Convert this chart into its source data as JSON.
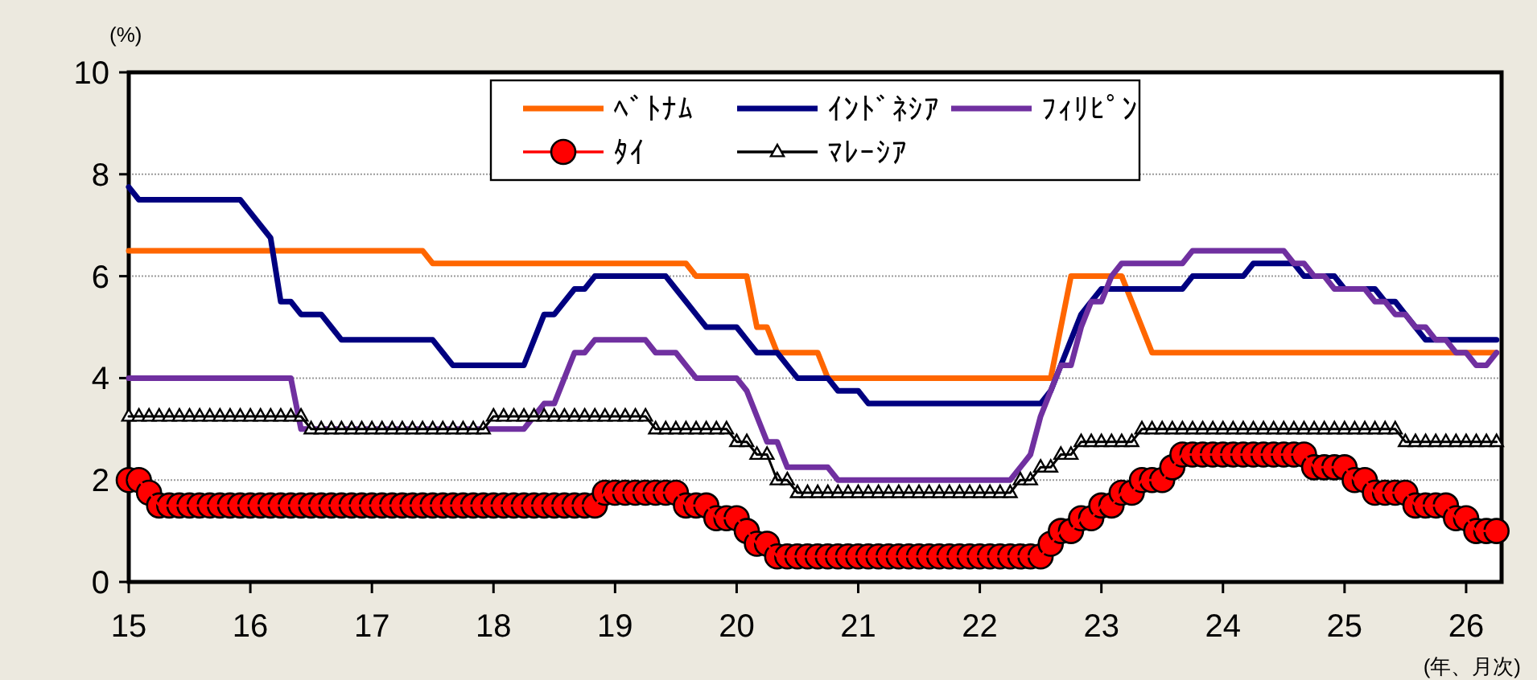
{
  "chart_data": {
    "type": "line",
    "ylabel": "(%)",
    "xlabel": "(年、月次)",
    "legend": "top",
    "grid": "y",
    "xlim": [
      "2015-01",
      "2026-04-16"
    ],
    "ylim": [
      0,
      10
    ],
    "yticks": [
      0,
      2,
      4,
      6,
      8,
      10
    ],
    "xticks": [
      {
        "value": "2015-01",
        "label": "15"
      },
      {
        "value": "2016-01",
        "label": "16"
      },
      {
        "value": "2017-01",
        "label": "17"
      },
      {
        "value": "2018-01",
        "label": "18"
      },
      {
        "value": "2019-01",
        "label": "19"
      },
      {
        "value": "2020-01",
        "label": "20"
      },
      {
        "value": "2021-01",
        "label": "21"
      },
      {
        "value": "2022-01",
        "label": "22"
      },
      {
        "value": "2023-01",
        "label": "23"
      },
      {
        "value": "2024-01",
        "label": "24"
      },
      {
        "value": "2025-01",
        "label": "25"
      },
      {
        "value": "2026-01",
        "label": "26"
      }
    ],
    "x": [
      "2015-01",
      "2015-02",
      "2015-03",
      "2015-04",
      "2015-05",
      "2015-06",
      "2015-07",
      "2015-08",
      "2015-09",
      "2015-10",
      "2015-11",
      "2015-12",
      "2016-01",
      "2016-02",
      "2016-03",
      "2016-04",
      "2016-05",
      "2016-06",
      "2016-07",
      "2016-08",
      "2016-09",
      "2016-10",
      "2016-11",
      "2016-12",
      "2017-01",
      "2017-02",
      "2017-03",
      "2017-04",
      "2017-05",
      "2017-06",
      "2017-07",
      "2017-08",
      "2017-09",
      "2017-10",
      "2017-11",
      "2017-12",
      "2018-01",
      "2018-02",
      "2018-03",
      "2018-04",
      "2018-05",
      "2018-06",
      "2018-07",
      "2018-08",
      "2018-09",
      "2018-10",
      "2018-11",
      "2018-12",
      "2019-01",
      "2019-02",
      "2019-03",
      "2019-04",
      "2019-05",
      "2019-06",
      "2019-07",
      "2019-08",
      "2019-09",
      "2019-10",
      "2019-11",
      "2019-12",
      "2020-01",
      "2020-02",
      "2020-03",
      "2020-04",
      "2020-05",
      "2020-06",
      "2020-07",
      "2020-08",
      "2020-09",
      "2020-10",
      "2020-11",
      "2020-12",
      "2021-01",
      "2021-02",
      "2021-03",
      "2021-04",
      "2021-05",
      "2021-06",
      "2021-07",
      "2021-08",
      "2021-09",
      "2021-10",
      "2021-11",
      "2021-12",
      "2022-01",
      "2022-02",
      "2022-03",
      "2022-04",
      "2022-05",
      "2022-06",
      "2022-07",
      "2022-08",
      "2022-09",
      "2022-10",
      "2022-11",
      "2022-12",
      "2023-01",
      "2023-02",
      "2023-03",
      "2023-04",
      "2023-05",
      "2023-06",
      "2023-07",
      "2023-08",
      "2023-09",
      "2023-10",
      "2023-11",
      "2023-12",
      "2024-01",
      "2024-02",
      "2024-03",
      "2024-04",
      "2024-05",
      "2024-06",
      "2024-07",
      "2024-08",
      "2024-09",
      "2024-10",
      "2024-11",
      "2024-12",
      "2025-01",
      "2025-02",
      "2025-03",
      "2025-04",
      "2025-05",
      "2025-06",
      "2025-07",
      "2025-08",
      "2025-09",
      "2025-10",
      "2025-11",
      "2025-12",
      "2026-01",
      "2026-02",
      "2026-03",
      "2026-04"
    ],
    "series": [
      {
        "name": "ﾍﾞﾄﾅﾑ",
        "color": "#ff6600",
        "marker": "none",
        "values": [
          6.5,
          6.5,
          6.5,
          6.5,
          6.5,
          6.5,
          6.5,
          6.5,
          6.5,
          6.5,
          6.5,
          6.5,
          6.5,
          6.5,
          6.5,
          6.5,
          6.5,
          6.5,
          6.5,
          6.5,
          6.5,
          6.5,
          6.5,
          6.5,
          6.5,
          6.5,
          6.5,
          6.5,
          6.5,
          6.5,
          6.25,
          6.25,
          6.25,
          6.25,
          6.25,
          6.25,
          6.25,
          6.25,
          6.25,
          6.25,
          6.25,
          6.25,
          6.25,
          6.25,
          6.25,
          6.25,
          6.25,
          6.25,
          6.25,
          6.25,
          6.25,
          6.25,
          6.25,
          6.25,
          6.25,
          6.25,
          6,
          6,
          6,
          6,
          6,
          6,
          5,
          5,
          4.5,
          4.5,
          4.5,
          4.5,
          4.5,
          4,
          4,
          4,
          4,
          4,
          4,
          4,
          4,
          4,
          4,
          4,
          4,
          4,
          4,
          4,
          4,
          4,
          4,
          4,
          4,
          4,
          4,
          4,
          5,
          6,
          6,
          6,
          6,
          6,
          6,
          5.5,
          5,
          4.5,
          4.5,
          4.5,
          4.5,
          4.5,
          4.5,
          4.5,
          4.5,
          4.5,
          4.5,
          4.5,
          4.5,
          4.5,
          4.5,
          4.5,
          4.5,
          4.5,
          4.5,
          4.5,
          4.5,
          4.5,
          4.5,
          4.5,
          4.5,
          4.5,
          4.5,
          4.5,
          4.5,
          4.5,
          4.5,
          4.5,
          4.5,
          4.5,
          4.5,
          4.5
        ]
      },
      {
        "name": "ｲﾝﾄﾞﾈｼｱ",
        "color": "#000080",
        "marker": "none",
        "values": [
          7.75,
          7.5,
          7.5,
          7.5,
          7.5,
          7.5,
          7.5,
          7.5,
          7.5,
          7.5,
          7.5,
          7.5,
          7.25,
          7,
          6.75,
          5.5,
          5.5,
          5.25,
          5.25,
          5.25,
          5,
          4.75,
          4.75,
          4.75,
          4.75,
          4.75,
          4.75,
          4.75,
          4.75,
          4.75,
          4.75,
          4.5,
          4.25,
          4.25,
          4.25,
          4.25,
          4.25,
          4.25,
          4.25,
          4.25,
          4.75,
          5.25,
          5.25,
          5.5,
          5.75,
          5.75,
          6,
          6,
          6,
          6,
          6,
          6,
          6,
          6,
          5.75,
          5.5,
          5.25,
          5,
          5,
          5,
          5,
          4.75,
          4.5,
          4.5,
          4.5,
          4.25,
          4,
          4,
          4,
          4,
          3.75,
          3.75,
          3.75,
          3.5,
          3.5,
          3.5,
          3.5,
          3.5,
          3.5,
          3.5,
          3.5,
          3.5,
          3.5,
          3.5,
          3.5,
          3.5,
          3.5,
          3.5,
          3.5,
          3.5,
          3.5,
          3.75,
          4.25,
          4.75,
          5.25,
          5.5,
          5.75,
          5.75,
          5.75,
          5.75,
          5.75,
          5.75,
          5.75,
          5.75,
          5.75,
          6,
          6,
          6,
          6,
          6,
          6,
          6.25,
          6.25,
          6.25,
          6.25,
          6.25,
          6,
          6,
          6,
          6,
          5.75,
          5.75,
          5.75,
          5.75,
          5.5,
          5.5,
          5.25,
          5,
          4.75,
          4.75,
          4.75,
          4.75,
          4.75,
          4.75,
          4.75,
          4.75
        ]
      },
      {
        "name": "ﾌｨﾘﾋﾟﾝ",
        "color": "#7030a0",
        "marker": "none",
        "values": [
          4,
          4,
          4,
          4,
          4,
          4,
          4,
          4,
          4,
          4,
          4,
          4,
          4,
          4,
          4,
          4,
          4,
          3,
          3,
          3,
          3,
          3,
          3,
          3,
          3,
          3,
          3,
          3,
          3,
          3,
          3,
          3,
          3,
          3,
          3,
          3,
          3,
          3,
          3,
          3,
          3.25,
          3.5,
          3.5,
          4,
          4.5,
          4.5,
          4.75,
          4.75,
          4.75,
          4.75,
          4.75,
          4.75,
          4.5,
          4.5,
          4.5,
          4.25,
          4,
          4,
          4,
          4,
          4,
          3.75,
          3.25,
          2.75,
          2.75,
          2.25,
          2.25,
          2.25,
          2.25,
          2.25,
          2,
          2,
          2,
          2,
          2,
          2,
          2,
          2,
          2,
          2,
          2,
          2,
          2,
          2,
          2,
          2,
          2,
          2,
          2.25,
          2.5,
          3.25,
          3.75,
          4.25,
          4.25,
          5,
          5.5,
          5.5,
          6,
          6.25,
          6.25,
          6.25,
          6.25,
          6.25,
          6.25,
          6.25,
          6.5,
          6.5,
          6.5,
          6.5,
          6.5,
          6.5,
          6.5,
          6.5,
          6.5,
          6.5,
          6.25,
          6.25,
          6,
          6,
          5.75,
          5.75,
          5.75,
          5.75,
          5.5,
          5.5,
          5.25,
          5.25,
          5,
          5,
          4.75,
          4.75,
          4.5,
          4.5,
          4.25,
          4.25,
          4.5
        ]
      },
      {
        "name": "ﾀｲ",
        "color": "#ff0000",
        "marker": "circle",
        "values": [
          2,
          2,
          1.75,
          1.5,
          1.5,
          1.5,
          1.5,
          1.5,
          1.5,
          1.5,
          1.5,
          1.5,
          1.5,
          1.5,
          1.5,
          1.5,
          1.5,
          1.5,
          1.5,
          1.5,
          1.5,
          1.5,
          1.5,
          1.5,
          1.5,
          1.5,
          1.5,
          1.5,
          1.5,
          1.5,
          1.5,
          1.5,
          1.5,
          1.5,
          1.5,
          1.5,
          1.5,
          1.5,
          1.5,
          1.5,
          1.5,
          1.5,
          1.5,
          1.5,
          1.5,
          1.5,
          1.5,
          1.75,
          1.75,
          1.75,
          1.75,
          1.75,
          1.75,
          1.75,
          1.75,
          1.5,
          1.5,
          1.5,
          1.25,
          1.25,
          1.25,
          1,
          0.75,
          0.75,
          0.5,
          0.5,
          0.5,
          0.5,
          0.5,
          0.5,
          0.5,
          0.5,
          0.5,
          0.5,
          0.5,
          0.5,
          0.5,
          0.5,
          0.5,
          0.5,
          0.5,
          0.5,
          0.5,
          0.5,
          0.5,
          0.5,
          0.5,
          0.5,
          0.5,
          0.5,
          0.5,
          0.75,
          1,
          1,
          1.25,
          1.25,
          1.5,
          1.5,
          1.75,
          1.75,
          2,
          2,
          2,
          2.25,
          2.5,
          2.5,
          2.5,
          2.5,
          2.5,
          2.5,
          2.5,
          2.5,
          2.5,
          2.5,
          2.5,
          2.5,
          2.5,
          2.25,
          2.25,
          2.25,
          2.25,
          2,
          2,
          1.75,
          1.75,
          1.75,
          1.75,
          1.5,
          1.5,
          1.5,
          1.5,
          1.25,
          1.25,
          1,
          1,
          1
        ]
      },
      {
        "name": "ﾏﾚｰｼｱ",
        "color": "#000000",
        "marker": "triangle",
        "values": [
          3.25,
          3.25,
          3.25,
          3.25,
          3.25,
          3.25,
          3.25,
          3.25,
          3.25,
          3.25,
          3.25,
          3.25,
          3.25,
          3.25,
          3.25,
          3.25,
          3.25,
          3.25,
          3,
          3,
          3,
          3,
          3,
          3,
          3,
          3,
          3,
          3,
          3,
          3,
          3,
          3,
          3,
          3,
          3,
          3,
          3.25,
          3.25,
          3.25,
          3.25,
          3.25,
          3.25,
          3.25,
          3.25,
          3.25,
          3.25,
          3.25,
          3.25,
          3.25,
          3.25,
          3.25,
          3.25,
          3,
          3,
          3,
          3,
          3,
          3,
          3,
          3,
          2.75,
          2.75,
          2.5,
          2.5,
          2,
          2,
          1.75,
          1.75,
          1.75,
          1.75,
          1.75,
          1.75,
          1.75,
          1.75,
          1.75,
          1.75,
          1.75,
          1.75,
          1.75,
          1.75,
          1.75,
          1.75,
          1.75,
          1.75,
          1.75,
          1.75,
          1.75,
          1.75,
          2,
          2,
          2.25,
          2.25,
          2.5,
          2.5,
          2.75,
          2.75,
          2.75,
          2.75,
          2.75,
          2.75,
          3,
          3,
          3,
          3,
          3,
          3,
          3,
          3,
          3,
          3,
          3,
          3,
          3,
          3,
          3,
          3,
          3,
          3,
          3,
          3,
          3,
          3,
          3,
          3,
          3,
          3,
          2.75,
          2.75,
          2.75,
          2.75,
          2.75,
          2.75,
          2.75,
          2.75,
          2.75,
          2.75
        ]
      }
    ]
  }
}
